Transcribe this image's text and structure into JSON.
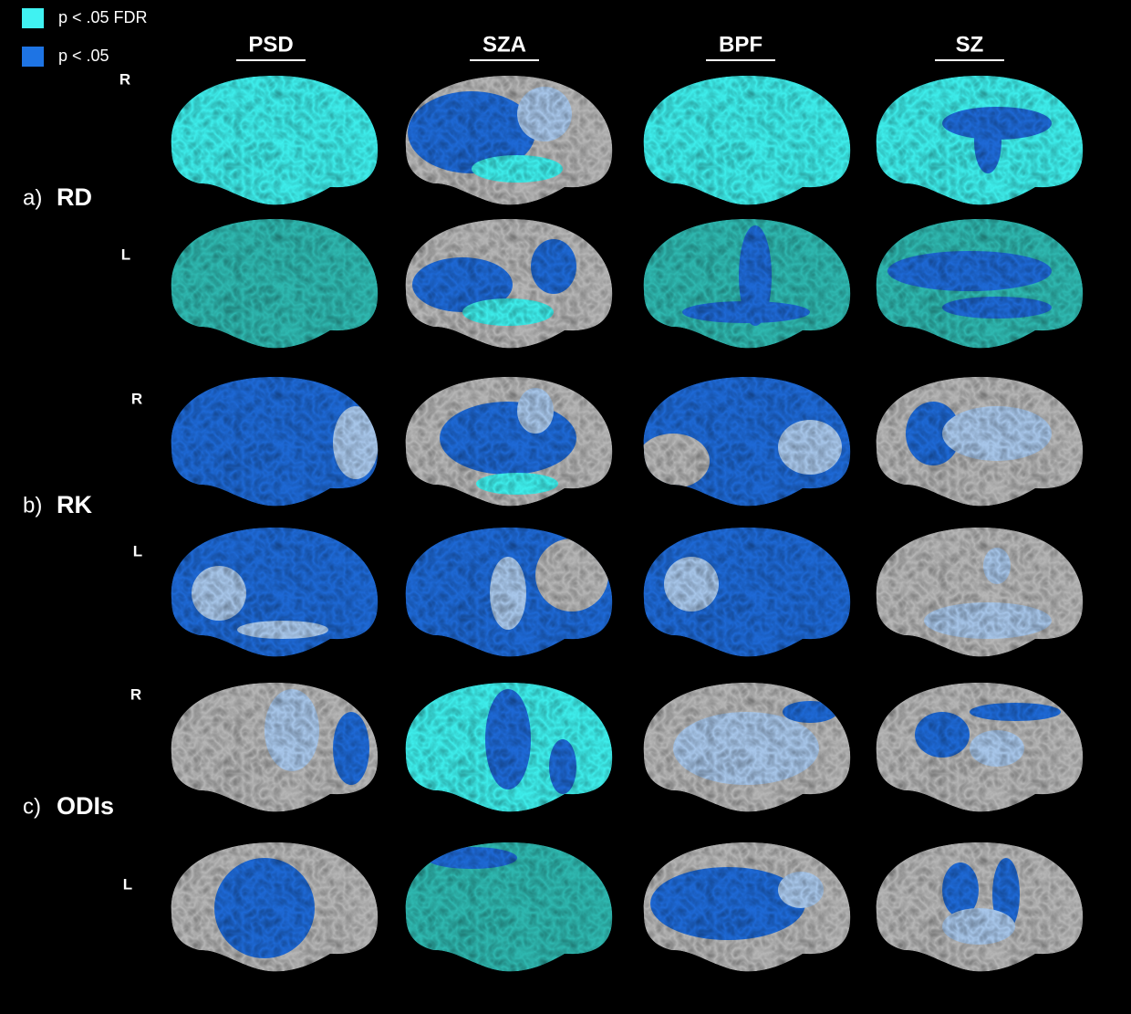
{
  "legend": [
    {
      "label": "p < .05 FDR",
      "color": "#40f2f2"
    },
    {
      "label": "p < .05",
      "color": "#1e74e4"
    }
  ],
  "columns": [
    "PSD",
    "SZA",
    "BPF",
    "SZ"
  ],
  "rows": [
    {
      "letter": "a)",
      "name": "RD",
      "hemispheres": [
        "R",
        "L"
      ]
    },
    {
      "letter": "b)",
      "name": "RK",
      "hemispheres": [
        "R",
        "L"
      ]
    },
    {
      "letter": "c)",
      "name": "ODIs",
      "hemispheres": [
        "R",
        "L"
      ]
    }
  ]
}
